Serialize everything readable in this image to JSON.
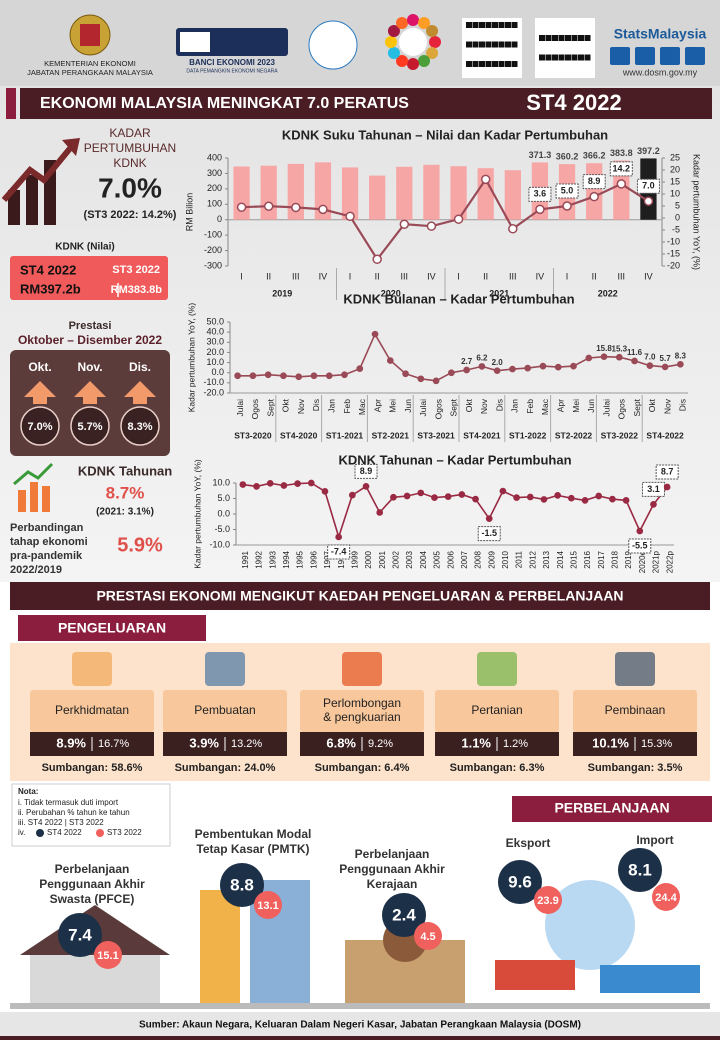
{
  "header": {
    "ministry": [
      "KEMENTERIAN EKONOMI",
      "JABATAN PERANGKAAN MALAYSIA"
    ],
    "census": "BANCI EKONOMI 2023",
    "census_tagline": "DATA PEMANGKIN EKONOMI NEGARA",
    "brand": "StatsMalaysia",
    "website": "www.dosm.gov.my"
  },
  "title": "EKONOMI MALAYSIA MENINGKAT 7.0 PERATUS",
  "period": "ST4 2022",
  "gdp_growth": {
    "label": [
      "KADAR",
      "PERTUMBUHAN",
      "KDNK"
    ],
    "value": "7.0%",
    "previous": "(ST3 2022: 14.2%)"
  },
  "gdp_value": {
    "label": "KDNK (Nilai)",
    "current_period": "ST4 2022",
    "current": "RM397.2b",
    "previous_period": "ST3 2022",
    "previous": "RM383.8b"
  },
  "monthly": {
    "label": "Prestasi",
    "period": "Oktober – Disember 2022",
    "months": [
      "Okt.",
      "Nov.",
      "Dis."
    ],
    "values": [
      "7.0%",
      "5.7%",
      "8.3%"
    ]
  },
  "annual": {
    "label": "KDNK Tahunan",
    "value": "8.7%",
    "previous": "(2021: 3.1%)",
    "comparison_label": [
      "Perbandingan",
      "tahap ekonomi",
      "pra-pandemik",
      "2022/2019"
    ],
    "comparison": "5.9%"
  },
  "chart_data": [
    {
      "type": "bar",
      "title": "KDNK Suku Tahunan – Nilai dan Kadar Pertumbuhan",
      "ylabel": "RM Bilion",
      "y2label": "Kadar pertumbuhan YoY, (%)",
      "categories": [
        "I",
        "II",
        "III",
        "IV",
        "I",
        "II",
        "III",
        "IV",
        "I",
        "II",
        "III",
        "IV",
        "I",
        "II",
        "III",
        "IV"
      ],
      "groups": [
        "2019",
        "2020",
        "2021",
        "2022"
      ],
      "series": [
        {
          "type": "bar",
          "color": "#f7a6a6",
          "colors": [
            "#f7a6a6",
            "#f7a6a6",
            "#f7a6a6",
            "#f7a6a6",
            "#f7a6a6",
            "#f7a6a6",
            "#f7a6a6",
            "#f7a6a6",
            "#f7a6a6",
            "#f7a6a6",
            "#f7a6a6",
            "#f7a6a6",
            "#f7a6a6",
            "#f7a6a6",
            "#f7a6a6",
            "#1e1e1e"
          ],
          "values": [
            345,
            350,
            362,
            372,
            339,
            286,
            343,
            356,
            347,
            334,
            321,
            371.3,
            360.2,
            366.2,
            383.8,
            397.2
          ],
          "value_labels": [
            null,
            null,
            null,
            null,
            null,
            null,
            null,
            null,
            null,
            null,
            null,
            "371.3",
            "360.2",
            "366.2",
            "383.8",
            "397.2"
          ]
        },
        {
          "type": "line",
          "axis": "y2",
          "color": "#9a4a56",
          "values": [
            4.5,
            4.9,
            4.4,
            3.6,
            0.7,
            -17.2,
            -2.6,
            -3.4,
            -0.5,
            16.1,
            -4.5,
            3.6,
            5.0,
            8.9,
            14.2,
            7.0
          ],
          "value_labels": [
            null,
            null,
            null,
            null,
            null,
            null,
            null,
            null,
            null,
            null,
            null,
            "3.6",
            "5.0",
            "8.9",
            "14.2",
            "7.0"
          ]
        }
      ],
      "ylim": [
        -300,
        400
      ],
      "yticks": [
        -300,
        -200,
        -100,
        0,
        100,
        200,
        300,
        400
      ],
      "y2lim": [
        -20,
        25
      ],
      "y2ticks": [
        -20,
        -15,
        -10,
        -5,
        0,
        5,
        10,
        15,
        20,
        25
      ],
      "grid": false
    },
    {
      "type": "line",
      "title": "KDNK Bulanan – Kadar Pertumbuhan",
      "ylabel": "Kadar pertumbuhan YoY, (%)",
      "categories": [
        "Julai",
        "Ogos",
        "Sept",
        "Okt",
        "Nov",
        "Dis",
        "Jan",
        "Feb",
        "Mac",
        "Apr",
        "Mei",
        "Jun",
        "Julai",
        "Ogos",
        "Sept",
        "Okt",
        "Nov",
        "Dis",
        "Jan",
        "Feb",
        "Mac",
        "Apr",
        "Mei",
        "Jun",
        "Julai",
        "Ogos",
        "Sept",
        "Okt",
        "Nov",
        "Dis"
      ],
      "groups": [
        "ST3-2020",
        "ST4-2020",
        "ST1-2021",
        "ST2-2021",
        "ST3-2021",
        "ST4-2021",
        "ST1-2022",
        "ST2-2022",
        "ST3-2022",
        "ST4-2022"
      ],
      "series": [
        {
          "type": "line",
          "color": "#9a4a56",
          "values": [
            -3,
            -3,
            -2,
            -3,
            -4,
            -3,
            -3,
            -2,
            4,
            38,
            12,
            -1,
            -6,
            -8,
            0,
            2.7,
            6.2,
            2.0,
            3.6,
            4.5,
            6.5,
            5.5,
            6.5,
            14.5,
            15.8,
            15.3,
            11.6,
            7.0,
            5.7,
            8.3
          ],
          "value_labels": [
            null,
            null,
            null,
            null,
            null,
            null,
            null,
            null,
            null,
            null,
            null,
            null,
            null,
            null,
            null,
            "2.7",
            "6.2",
            "2.0",
            null,
            null,
            null,
            null,
            null,
            null,
            "15.8",
            "15.3",
            "11.6",
            "7.0",
            "5.7",
            "8.3"
          ]
        }
      ],
      "ylim": [
        -20,
        50
      ],
      "yticks": [
        {
          "value": -20,
          "label": "-20.0"
        },
        {
          "value": -10,
          "label": "-10.0"
        },
        {
          "value": 0,
          "label": "0.0"
        },
        {
          "value": 10,
          "label": "10.0"
        },
        {
          "value": 20,
          "label": "20.0"
        },
        {
          "value": 30,
          "label": "30.0"
        },
        {
          "value": 40,
          "label": "40.0"
        },
        {
          "value": 50,
          "label": "50.0"
        }
      ],
      "grid": false
    },
    {
      "type": "line",
      "title": "KDNK Tahunan – Kadar Pertumbuhan",
      "ylabel": "Kadar pertumbuhan YoY, (%)",
      "categories": [
        "1991",
        "1992",
        "1993",
        "1994",
        "1995",
        "1996",
        "1997",
        "1998",
        "1999",
        "2000",
        "2001",
        "2002",
        "2003",
        "2004",
        "2005",
        "2006",
        "2007",
        "2008",
        "2009",
        "2010",
        "2011",
        "2012",
        "2013",
        "2014",
        "2015",
        "2016",
        "2017",
        "2018",
        "2019",
        "2020e",
        "2021p",
        "2022p"
      ],
      "series": [
        {
          "type": "line",
          "color": "#9a2a44",
          "values": [
            9.5,
            8.9,
            9.9,
            9.2,
            9.8,
            10.0,
            7.3,
            -7.4,
            6.1,
            8.9,
            0.5,
            5.4,
            5.8,
            6.8,
            5.3,
            5.6,
            6.3,
            4.8,
            -1.5,
            7.4,
            5.3,
            5.5,
            4.7,
            6.0,
            5.1,
            4.4,
            5.8,
            4.8,
            4.4,
            -5.5,
            3.1,
            8.7
          ],
          "value_labels": [
            null,
            null,
            null,
            null,
            null,
            null,
            null,
            "-7.4",
            null,
            "8.9",
            null,
            null,
            null,
            null,
            null,
            null,
            null,
            null,
            "-1.5",
            null,
            null,
            null,
            null,
            null,
            null,
            null,
            null,
            null,
            null,
            "-5.5",
            "3.1",
            "8.7"
          ]
        }
      ],
      "ylim": [
        -10,
        10
      ],
      "yticks": [
        {
          "value": -10,
          "label": "-10.0"
        },
        {
          "value": -5,
          "label": "-5.0"
        },
        {
          "value": 0,
          "label": "0.0"
        },
        {
          "value": 5,
          "label": "5.0"
        },
        {
          "value": 10,
          "label": "10.0"
        }
      ],
      "grid": false
    }
  ],
  "section_title": "PRESTASI EKONOMI MENGIKUT KAEDAH PENGELUARAN & PERBELANJAAN",
  "production": {
    "title": "PENGELUARAN",
    "sectors": [
      {
        "name": [
          "Perkhidmatan"
        ],
        "current": "8.9%",
        "previous": "16.7%",
        "share": "Sumbangan: 58.6%"
      },
      {
        "name": [
          "Pembuatan"
        ],
        "current": "3.9%",
        "previous": "13.2%",
        "share": "Sumbangan: 24.0%"
      },
      {
        "name": [
          "Perlombongan",
          "& pengkuarian"
        ],
        "current": "6.8%",
        "previous": "9.2%",
        "share": "Sumbangan: 6.4%"
      },
      {
        "name": [
          "Pertanian"
        ],
        "current": "1.1%",
        "previous": "1.2%",
        "share": "Sumbangan: 6.3%"
      },
      {
        "name": [
          "Pembinaan"
        ],
        "current": "10.1%",
        "previous": "15.3%",
        "share": "Sumbangan: 3.5%"
      }
    ]
  },
  "notes": {
    "title": "Nota:",
    "items": [
      "i.   Tidak termasuk duti import",
      "ii.  Perubahan % tahun ke tahun",
      "iii. ST4 2022 | ST3 2022",
      "iv."
    ],
    "legend": [
      "ST4 2022",
      "ST3 2022"
    ]
  },
  "expenditure": {
    "title": "PERBELANJAAN",
    "items": [
      {
        "name": [
          "Perbelanjaan",
          "Penggunaan Akhir",
          "Swasta (PFCE)"
        ],
        "current": "7.4",
        "previous": "15.1"
      },
      {
        "name": [
          "Pembentukan Modal",
          "Tetap Kasar (PMTK)"
        ],
        "current": "8.8",
        "previous": "13.1"
      },
      {
        "name": [
          "Perbelanjaan",
          "Penggunaan Akhir",
          "Kerajaan"
        ],
        "current": "2.4",
        "previous": "4.5"
      },
      {
        "name": [
          "Eksport"
        ],
        "current": "9.6",
        "previous": "23.9"
      },
      {
        "name": [
          "Import"
        ],
        "current": "8.1",
        "previous": "24.4"
      }
    ]
  },
  "source": "Sumber: Akaun Negara, Keluaran Dalam Negeri Kasar, Jabatan Perangkaan Malaysia (DOSM)"
}
